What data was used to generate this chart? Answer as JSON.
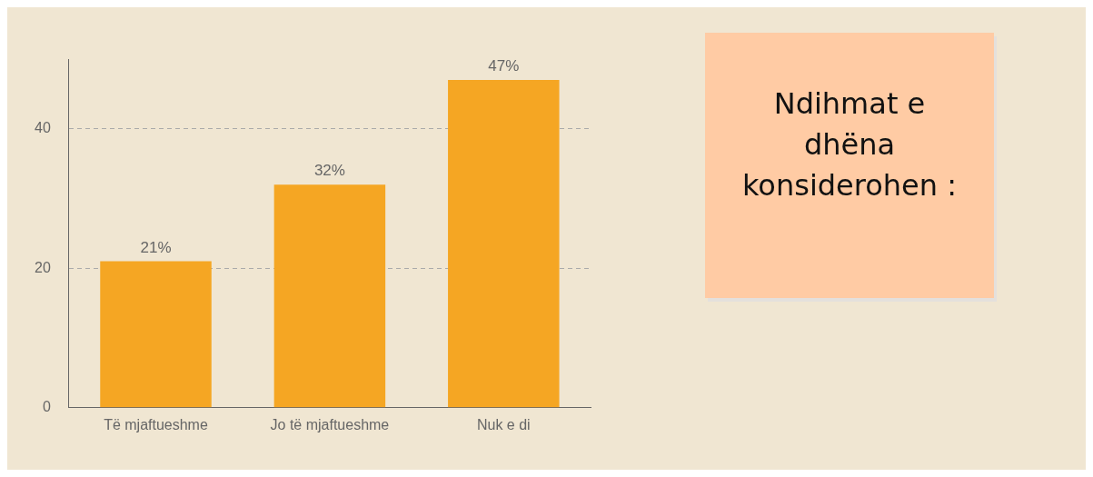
{
  "chart_data": {
    "type": "bar",
    "title": "Ndihmat e dhëna konsiderohen :",
    "categories": [
      "Të mjaftueshme",
      "Jo të mjaftueshme",
      "Nuk e di"
    ],
    "values": [
      21,
      32,
      47
    ],
    "color": "#f5a623",
    "value_labels": [
      "21%",
      "32%",
      "47%"
    ],
    "ylim": [
      0,
      50
    ],
    "yticks": [
      0,
      20,
      40
    ],
    "grid": "y",
    "legend": false
  }
}
